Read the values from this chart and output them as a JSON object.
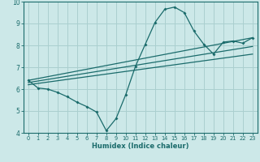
{
  "xlabel": "Humidex (Indice chaleur)",
  "bg_color": "#cce8e8",
  "grid_color": "#aacfcf",
  "line_color": "#1a6b6b",
  "xlim": [
    -0.5,
    23.5
  ],
  "ylim": [
    4,
    10
  ],
  "yticks": [
    4,
    5,
    6,
    7,
    8,
    9,
    10
  ],
  "xticks": [
    0,
    1,
    2,
    3,
    4,
    5,
    6,
    7,
    8,
    9,
    10,
    11,
    12,
    13,
    14,
    15,
    16,
    17,
    18,
    19,
    20,
    21,
    22,
    23
  ],
  "line1_x": [
    0,
    1,
    2,
    3,
    4,
    5,
    6,
    7,
    8,
    9,
    10,
    11,
    12,
    13,
    14,
    15,
    16,
    17,
    18,
    19,
    20,
    21,
    22,
    23
  ],
  "line1_y": [
    6.4,
    6.05,
    6.0,
    5.85,
    5.65,
    5.4,
    5.2,
    4.95,
    4.1,
    4.65,
    5.75,
    7.05,
    8.05,
    9.05,
    9.65,
    9.75,
    9.5,
    8.65,
    8.05,
    7.6,
    8.15,
    8.2,
    8.1,
    8.35
  ],
  "line2_x": [
    0,
    23
  ],
  "line2_y": [
    6.4,
    8.35
  ],
  "line3_x": [
    0,
    23
  ],
  "line3_y": [
    6.3,
    7.95
  ],
  "line4_x": [
    0,
    23
  ],
  "line4_y": [
    6.2,
    7.6
  ]
}
